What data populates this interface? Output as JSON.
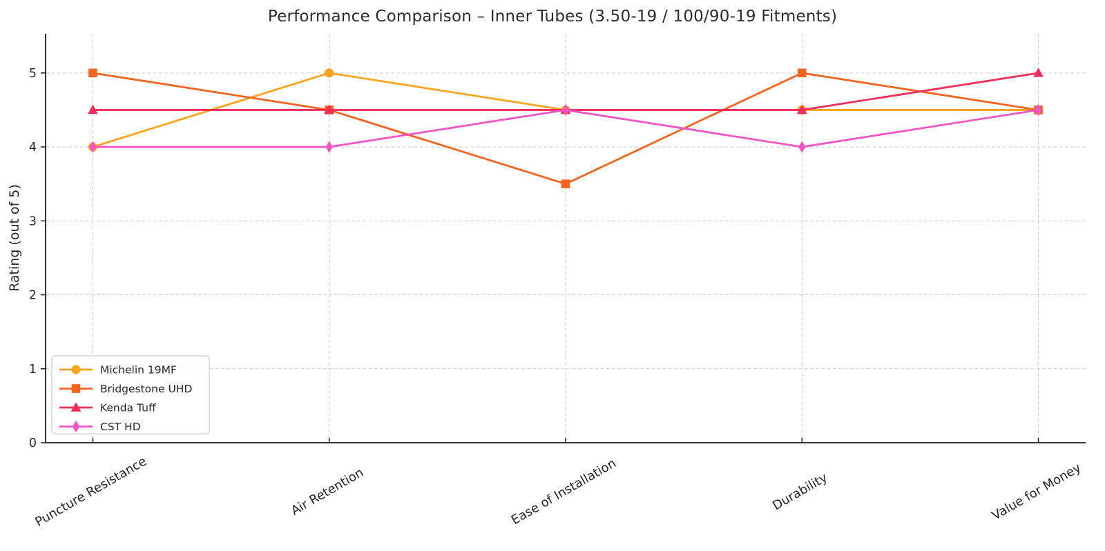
{
  "chart_data": {
    "type": "line",
    "title": "Performance Comparison – Inner Tubes (3.50-19 / 100/90-19 Fitments)",
    "ylabel": "Rating (out of 5)",
    "xlabel": "",
    "categories": [
      "Puncture Resistance",
      "Air Retention",
      "Ease of Installation",
      "Durability",
      "Value for Money"
    ],
    "yticks": [
      0,
      1,
      2,
      3,
      4,
      5
    ],
    "ylim": [
      0,
      5.53
    ],
    "grid": "both-dashed",
    "legend_position": "lower-left",
    "series": [
      {
        "name": "Michelin 19MF",
        "color": "#FBA51D",
        "marker": "circle",
        "values": [
          4,
          5,
          4.5,
          4.5,
          4.5
        ]
      },
      {
        "name": "Bridgestone UHD",
        "color": "#F3641E",
        "marker": "square",
        "values": [
          5,
          4.5,
          3.5,
          5,
          4.5
        ]
      },
      {
        "name": "Kenda Tuff",
        "color": "#EF2E5B",
        "marker": "triangle-up",
        "values": [
          4.5,
          4.5,
          4.5,
          4.5,
          5
        ]
      },
      {
        "name": "CST HD",
        "color": "#F455C4",
        "marker": "thin-diamond",
        "values": [
          4,
          4,
          4.5,
          4,
          4.5
        ]
      }
    ],
    "colors": {
      "spine": "#1a1a1a",
      "grid": "#c9c9c9",
      "tick_label": "#262626",
      "legend_border": "#cccccc",
      "legend_bg": "rgba(255,255,255,0.9)"
    }
  }
}
